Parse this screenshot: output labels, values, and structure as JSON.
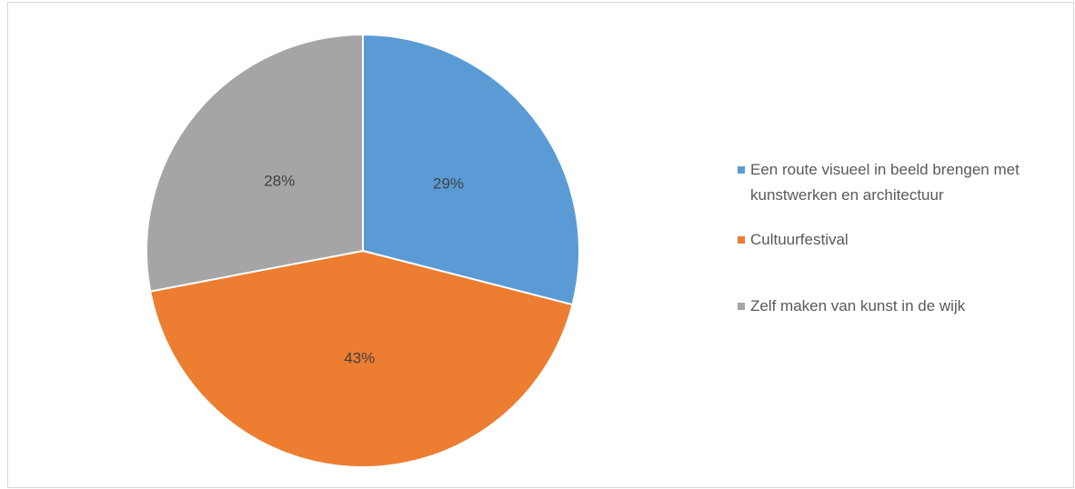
{
  "chart_data": {
    "type": "pie",
    "categories": [
      "Een route visueel in beeld brengen met kunstwerken en architectuur",
      "Cultuurfestival",
      "Zelf maken van kunst in de wijk"
    ],
    "values": [
      29,
      43,
      28
    ],
    "value_labels": [
      "29%",
      "43%",
      "28%"
    ],
    "colors": [
      "#5b9bd5",
      "#ed7d31",
      "#a5a5a5"
    ],
    "legend": "right"
  }
}
